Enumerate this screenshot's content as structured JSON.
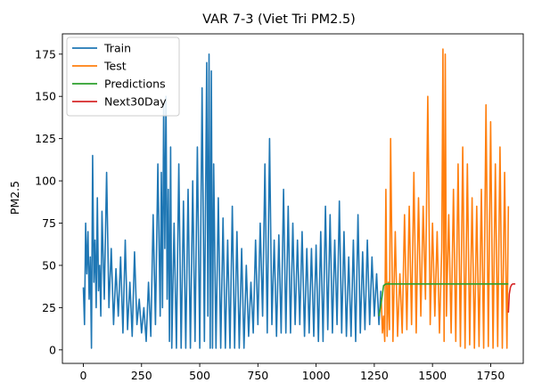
{
  "chart_data": {
    "type": "line",
    "title": "VAR 7-3 (Viet Tri PM2.5)",
    "xlabel": "",
    "ylabel": "PM2.5",
    "xlim": [
      -90,
      1890
    ],
    "ylim": [
      -8,
      187
    ],
    "xticks": [
      0,
      250,
      500,
      750,
      1000,
      1250,
      1500,
      1750
    ],
    "yticks": [
      0,
      25,
      50,
      75,
      100,
      125,
      150,
      175
    ],
    "grid": false,
    "legend_position": "top-left",
    "series": [
      {
        "name": "Train",
        "color": "#1f77b4",
        "x": [
          0,
          5,
          10,
          15,
          20,
          25,
          30,
          35,
          40,
          45,
          50,
          55,
          60,
          65,
          70,
          75,
          80,
          90,
          100,
          110,
          120,
          130,
          140,
          150,
          160,
          170,
          180,
          190,
          200,
          210,
          220,
          230,
          240,
          250,
          260,
          270,
          280,
          290,
          300,
          310,
          320,
          330,
          335,
          340,
          345,
          350,
          355,
          360,
          365,
          370,
          375,
          380,
          390,
          400,
          410,
          420,
          430,
          440,
          450,
          460,
          470,
          480,
          490,
          500,
          510,
          520,
          530,
          535,
          540,
          545,
          550,
          555,
          560,
          570,
          580,
          590,
          600,
          610,
          620,
          630,
          640,
          650,
          660,
          670,
          680,
          690,
          700,
          710,
          720,
          730,
          740,
          750,
          760,
          770,
          780,
          790,
          800,
          810,
          820,
          830,
          840,
          850,
          860,
          870,
          880,
          890,
          900,
          910,
          920,
          930,
          940,
          950,
          960,
          970,
          980,
          990,
          1000,
          1010,
          1020,
          1030,
          1040,
          1050,
          1060,
          1070,
          1080,
          1090,
          1100,
          1110,
          1120,
          1130,
          1140,
          1150,
          1160,
          1170,
          1180,
          1190,
          1200,
          1210,
          1220,
          1230,
          1240,
          1250,
          1260,
          1270,
          1278
        ],
        "y": [
          37,
          15,
          75,
          45,
          70,
          30,
          55,
          1,
          115,
          40,
          65,
          25,
          90,
          35,
          50,
          20,
          82,
          30,
          105,
          25,
          60,
          15,
          48,
          20,
          55,
          10,
          65,
          12,
          40,
          8,
          58,
          15,
          30,
          10,
          25,
          5,
          40,
          8,
          80,
          15,
          110,
          20,
          105,
          25,
          145,
          60,
          150,
          30,
          95,
          5,
          120,
          1,
          75,
          1,
          110,
          1,
          88,
          1,
          95,
          1,
          100,
          5,
          120,
          1,
          155,
          5,
          170,
          20,
          175,
          1,
          165,
          1,
          110,
          1,
          90,
          1,
          78,
          1,
          65,
          1,
          85,
          1,
          70,
          1,
          60,
          1,
          50,
          8,
          40,
          10,
          65,
          15,
          75,
          20,
          110,
          10,
          125,
          15,
          65,
          8,
          68,
          10,
          95,
          10,
          85,
          10,
          75,
          15,
          65,
          15,
          70,
          8,
          60,
          10,
          60,
          8,
          62,
          5,
          70,
          5,
          85,
          12,
          80,
          10,
          65,
          15,
          88,
          10,
          70,
          8,
          55,
          8,
          65,
          5,
          80,
          10,
          58,
          12,
          65,
          15,
          55,
          20,
          45,
          15,
          35
        ]
      },
      {
        "name": "Test",
        "color": "#ff7f0e",
        "x": [
          1280,
          1285,
          1290,
          1295,
          1300,
          1305,
          1310,
          1315,
          1320,
          1330,
          1340,
          1350,
          1360,
          1370,
          1380,
          1390,
          1400,
          1410,
          1420,
          1430,
          1440,
          1450,
          1460,
          1470,
          1480,
          1490,
          1500,
          1510,
          1520,
          1530,
          1540,
          1545,
          1550,
          1555,
          1560,
          1570,
          1580,
          1590,
          1600,
          1610,
          1620,
          1630,
          1640,
          1650,
          1660,
          1670,
          1680,
          1690,
          1700,
          1710,
          1720,
          1730,
          1740,
          1750,
          1760,
          1770,
          1780,
          1790,
          1800,
          1810,
          1820,
          1826
        ],
        "y": [
          30,
          10,
          20,
          5,
          95,
          8,
          40,
          12,
          125,
          5,
          70,
          8,
          45,
          10,
          80,
          12,
          85,
          15,
          105,
          10,
          90,
          20,
          85,
          30,
          150,
          15,
          75,
          20,
          70,
          10,
          60,
          178,
          5,
          175,
          20,
          80,
          10,
          95,
          5,
          110,
          2,
          120,
          1,
          110,
          3,
          90,
          1,
          85,
          2,
          95,
          1,
          145,
          2,
          135,
          1,
          110,
          2,
          120,
          1,
          105,
          1,
          85
        ]
      },
      {
        "name": "Predictions",
        "color": "#2ca02c",
        "x": [
          1270,
          1280,
          1290,
          1300,
          1320,
          1400,
          1500,
          1600,
          1700,
          1800,
          1826
        ],
        "y": [
          20,
          28,
          38,
          39,
          39,
          39,
          39,
          39,
          39,
          39,
          39
        ]
      },
      {
        "name": "Next30Day",
        "color": "#d62728",
        "x": [
          1826,
          1830,
          1835,
          1840,
          1845,
          1850,
          1856
        ],
        "y": [
          22,
          33,
          37,
          38.5,
          39,
          39,
          39
        ]
      }
    ]
  }
}
